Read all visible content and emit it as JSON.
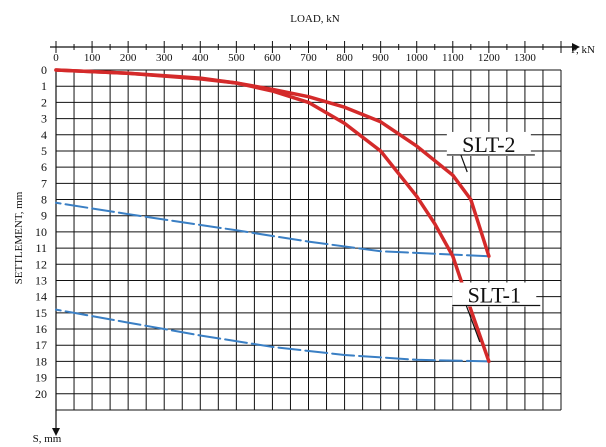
{
  "chart_data": {
    "type": "line",
    "title": "",
    "xlabel": "LOAD, kN",
    "x_axis_end_label": "P, kN",
    "ylabel": "SETTLEMENT, mm",
    "y_axis_end_label": "S, mm",
    "xlim": [
      0,
      1400
    ],
    "ylim": [
      0,
      21
    ],
    "y_inverted": true,
    "x_ticks": [
      0,
      100,
      200,
      300,
      400,
      500,
      600,
      700,
      800,
      900,
      1000,
      1100,
      1200,
      1300
    ],
    "y_ticks": [
      0,
      1,
      2,
      3,
      4,
      5,
      6,
      7,
      8,
      9,
      10,
      11,
      12,
      13,
      14,
      15,
      16,
      17,
      18,
      19,
      20
    ],
    "grid": true,
    "series": [
      {
        "name": "SLT-2",
        "color": "#d42a2a",
        "style": "solid",
        "label_at": [
          1200,
          5
        ],
        "leader_to": [
          1140,
          6.3
        ],
        "loading": {
          "x": [
            0,
            200,
            400,
            500,
            600,
            700,
            800,
            900,
            1000,
            1100,
            1150,
            1200
          ],
          "y": [
            0,
            0.2,
            0.55,
            0.8,
            1.2,
            1.65,
            2.3,
            3.2,
            4.7,
            6.5,
            8,
            11.5
          ]
        },
        "unloading": {
          "x": [
            1200,
            900,
            700,
            500,
            200,
            0
          ],
          "y": [
            11.5,
            11.2,
            10.6,
            9.9,
            8.9,
            8.2
          ]
        }
      },
      {
        "name": "SLT-1",
        "color": "#d42a2a",
        "style": "solid",
        "label_at": [
          1215,
          14.3
        ],
        "leader_to": [
          1175,
          16.8
        ],
        "loading": {
          "x": [
            0,
            200,
            400,
            500,
            600,
            700,
            800,
            900,
            1000,
            1050,
            1100,
            1150,
            1200
          ],
          "y": [
            0,
            0.2,
            0.5,
            0.8,
            1.3,
            2.0,
            3.3,
            5.0,
            7.8,
            9.5,
            11.5,
            14.8,
            18
          ]
        },
        "unloading": {
          "x": [
            1200,
            1000,
            800,
            600,
            400,
            200,
            0
          ],
          "y": [
            18,
            17.9,
            17.6,
            17.1,
            16.4,
            15.6,
            14.8
          ]
        }
      }
    ]
  }
}
